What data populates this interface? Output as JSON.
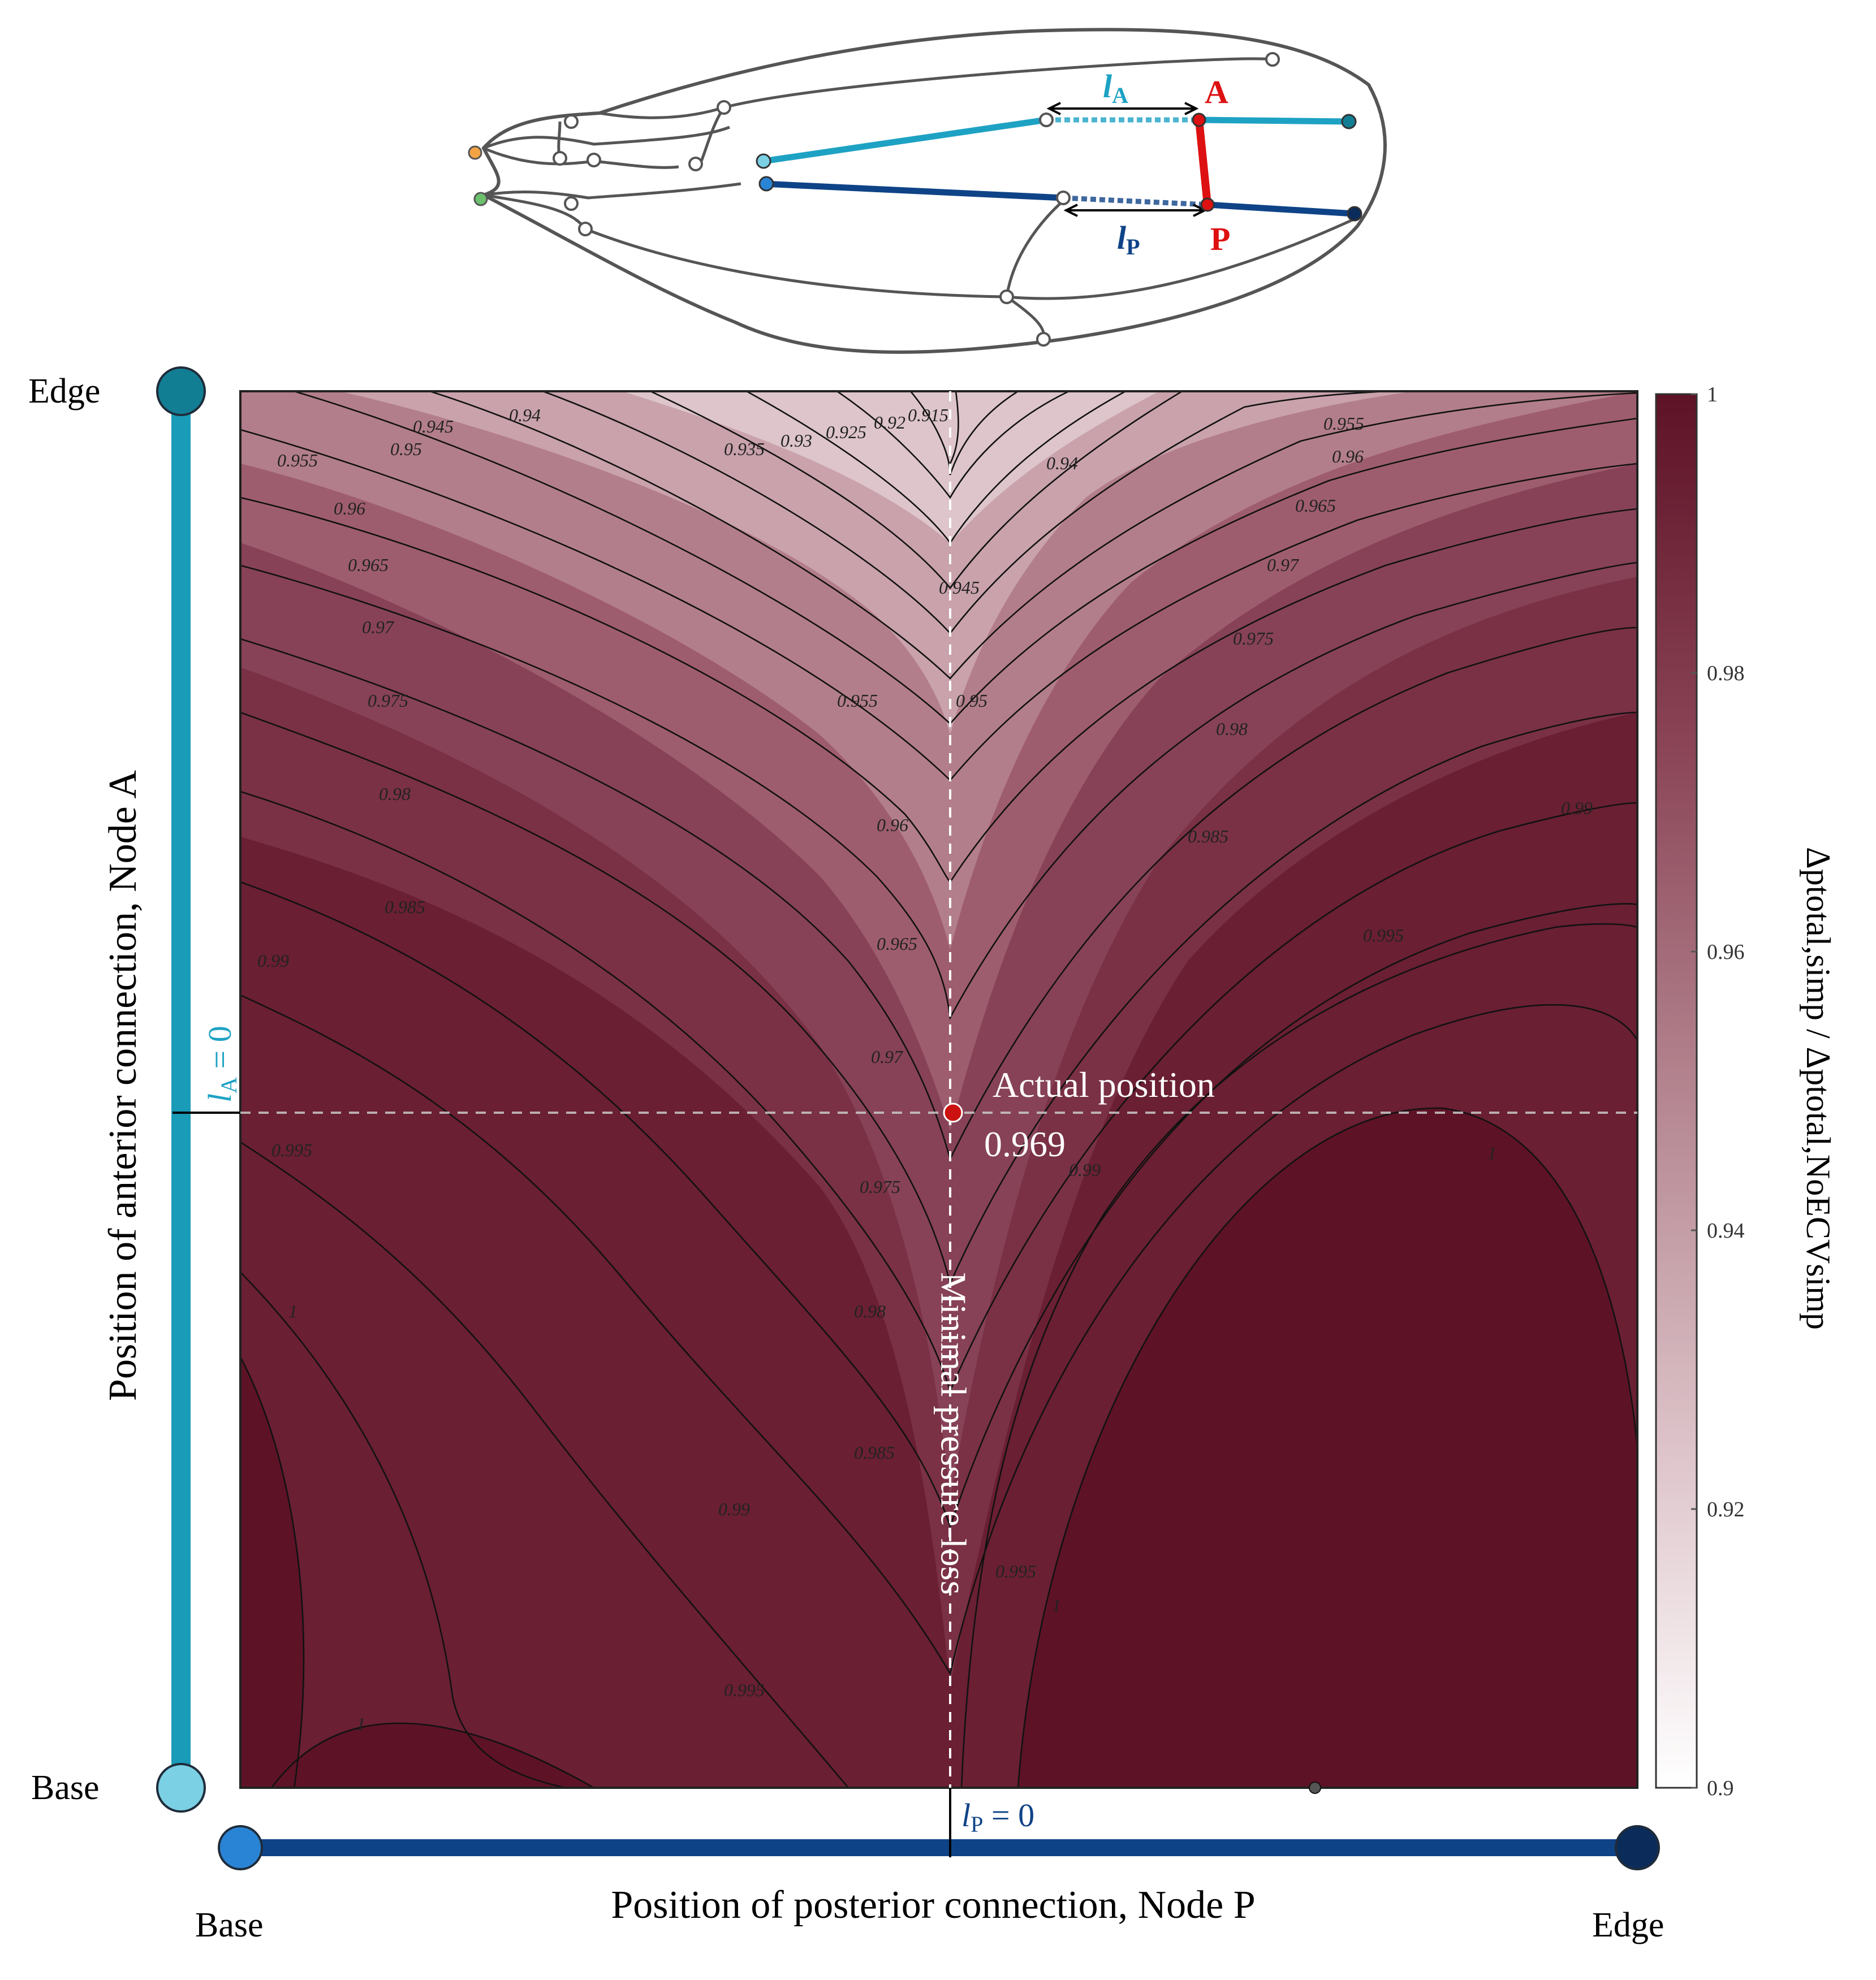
{
  "chart_data": {
    "type": "contour",
    "title": "",
    "xlabel": "Position of posterior connection,  Node P",
    "ylabel": "Position of anterior connection,  Node A",
    "x_ends": {
      "left": "Base",
      "right": "Edge"
    },
    "y_ends": {
      "bottom": "Base",
      "top": "Edge"
    },
    "colorbar": {
      "label": "Δptotal,simp / Δptotal,NoECVsimp",
      "range": [
        0.9,
        1.0
      ],
      "ticks": [
        "0.9",
        "0.92",
        "0.94",
        "0.96",
        "0.98",
        "1"
      ],
      "color_low": "#ffffff",
      "color_high": "#5e1226"
    },
    "contour_levels": [
      "0.915",
      "0.92",
      "0.925",
      "0.93",
      "0.935",
      "0.94",
      "0.945",
      "0.95",
      "0.955",
      "0.96",
      "0.965",
      "0.97",
      "0.975",
      "0.98",
      "0.985",
      "0.99",
      "0.995",
      "1"
    ],
    "actual_position": {
      "label": "Actual position",
      "value": "0.969",
      "color": "#cc1111"
    },
    "min_line_label": "Minimal pressure-loss",
    "lA_zero": {
      "sym": "l",
      "sub": "A",
      "eq": " = 0"
    },
    "lP_zero": {
      "sym": "l",
      "sub": "P",
      "eq": " = 0"
    }
  },
  "wing": {
    "label_lA": {
      "sym": "l",
      "sub": "A"
    },
    "label_lP": {
      "sym": "l",
      "sub": "P"
    },
    "node_A": "A",
    "node_P": "P"
  },
  "colors": {
    "anterior": "#1ea2c4",
    "posterior": "#0f4387",
    "cross_vein": "#dd1111"
  }
}
